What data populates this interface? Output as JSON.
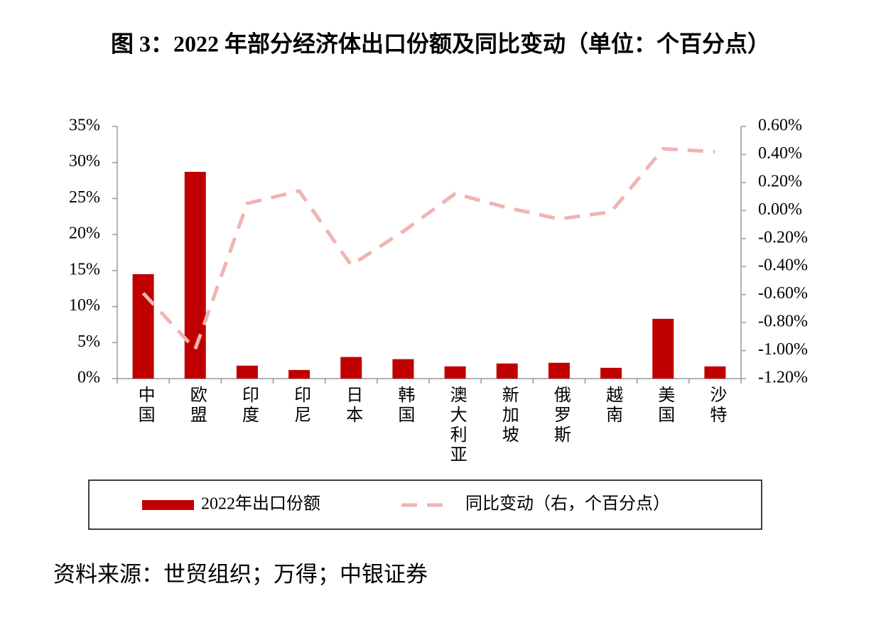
{
  "title": "图 3：2022 年部分经济体出口份额及同比变动（单位：个百分点）",
  "chart_data": {
    "type": "bar",
    "categories": [
      "中国",
      "欧盟",
      "印度",
      "印尼",
      "日本",
      "韩国",
      "澳大利亚",
      "新加坡",
      "俄罗斯",
      "越南",
      "美国",
      "沙特"
    ],
    "series": [
      {
        "name": "2022年出口份额",
        "type": "bar",
        "color": "#c00000",
        "values": [
          14.5,
          28.7,
          1.8,
          1.2,
          3.0,
          2.7,
          1.7,
          2.1,
          2.2,
          1.5,
          8.3,
          1.7
        ]
      },
      {
        "name": "同比变动（右，个百分点）",
        "type": "line",
        "axis": "y2",
        "color": "#f0b4b2",
        "values": [
          -0.59,
          -0.99,
          0.05,
          0.14,
          -0.39,
          -0.15,
          0.12,
          0.02,
          -0.06,
          -0.01,
          0.44,
          0.42
        ]
      }
    ],
    "ylim": [
      0,
      35
    ],
    "yticks": [
      {
        "value": 0,
        "label": "0%"
      },
      {
        "value": 5,
        "label": "5%"
      },
      {
        "value": 10,
        "label": "10%"
      },
      {
        "value": 15,
        "label": "15%"
      },
      {
        "value": 20,
        "label": "20%"
      },
      {
        "value": 25,
        "label": "25%"
      },
      {
        "value": 30,
        "label": "30%"
      },
      {
        "value": 35,
        "label": "35%"
      }
    ],
    "y2lim": [
      -1.2,
      0.6
    ],
    "y2ticks": [
      {
        "value": -1.2,
        "label": "-1.20%"
      },
      {
        "value": -1.0,
        "label": "-1.00%"
      },
      {
        "value": -0.8,
        "label": "-0.80%"
      },
      {
        "value": -0.6,
        "label": "-0.60%"
      },
      {
        "value": -0.4,
        "label": "-0.40%"
      },
      {
        "value": -0.2,
        "label": "-0.20%"
      },
      {
        "value": 0,
        "label": "0.00%"
      },
      {
        "value": 0.2,
        "label": "0.20%"
      },
      {
        "value": 0.4,
        "label": "0.40%"
      },
      {
        "value": 0.6,
        "label": "0.60%"
      }
    ],
    "grid": false
  },
  "source": "资料来源：世贸组织；万得；中银证券"
}
